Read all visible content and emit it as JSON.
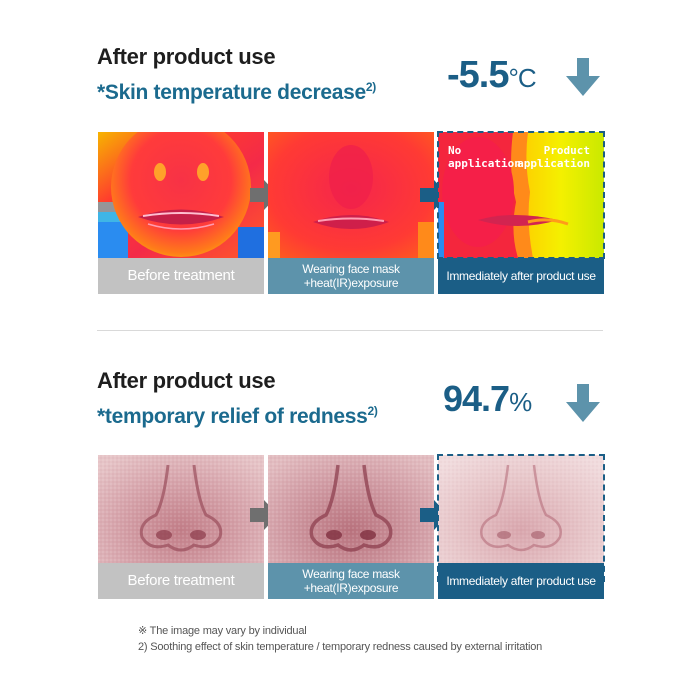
{
  "section1": {
    "title": "After product use",
    "subtitle": "*Skin temperature decrease",
    "subtitle_ref": "2)",
    "value": "-5.5",
    "unit": "°C",
    "captions": [
      "Before treatment",
      "Wearing face mask",
      "+heat(IR)exposure",
      "Immediately after product use"
    ],
    "overlay_left": [
      "No",
      "application"
    ],
    "overlay_right": [
      "Product",
      "application"
    ]
  },
  "section2": {
    "title": "After product use",
    "subtitle": "*temporary relief of redness",
    "subtitle_ref": "2)",
    "value": "94.7",
    "unit": "%",
    "captions": [
      "Before treatment",
      "Wearing face mask",
      "+heat(IR)exposure",
      "Immediately after product use"
    ]
  },
  "footnotes": {
    "note1": "※ The image may vary by individual",
    "note2": "2) Soothing effect of skin temperature / temporary redness caused by external irritation"
  },
  "colors": {
    "title": "#1e1e1e",
    "accent": "#1b6a8e",
    "dark_blue": "#1b5e86",
    "mid_blue": "#5d93ab",
    "gray_caption": "#c2c2c2",
    "arrow_gray": "#6f6f6f",
    "arrow_light_blue": "#5d93ab"
  },
  "icons": {
    "down_arrow": "down-arrow-icon",
    "step_arrow": "right-arrow-icon"
  }
}
